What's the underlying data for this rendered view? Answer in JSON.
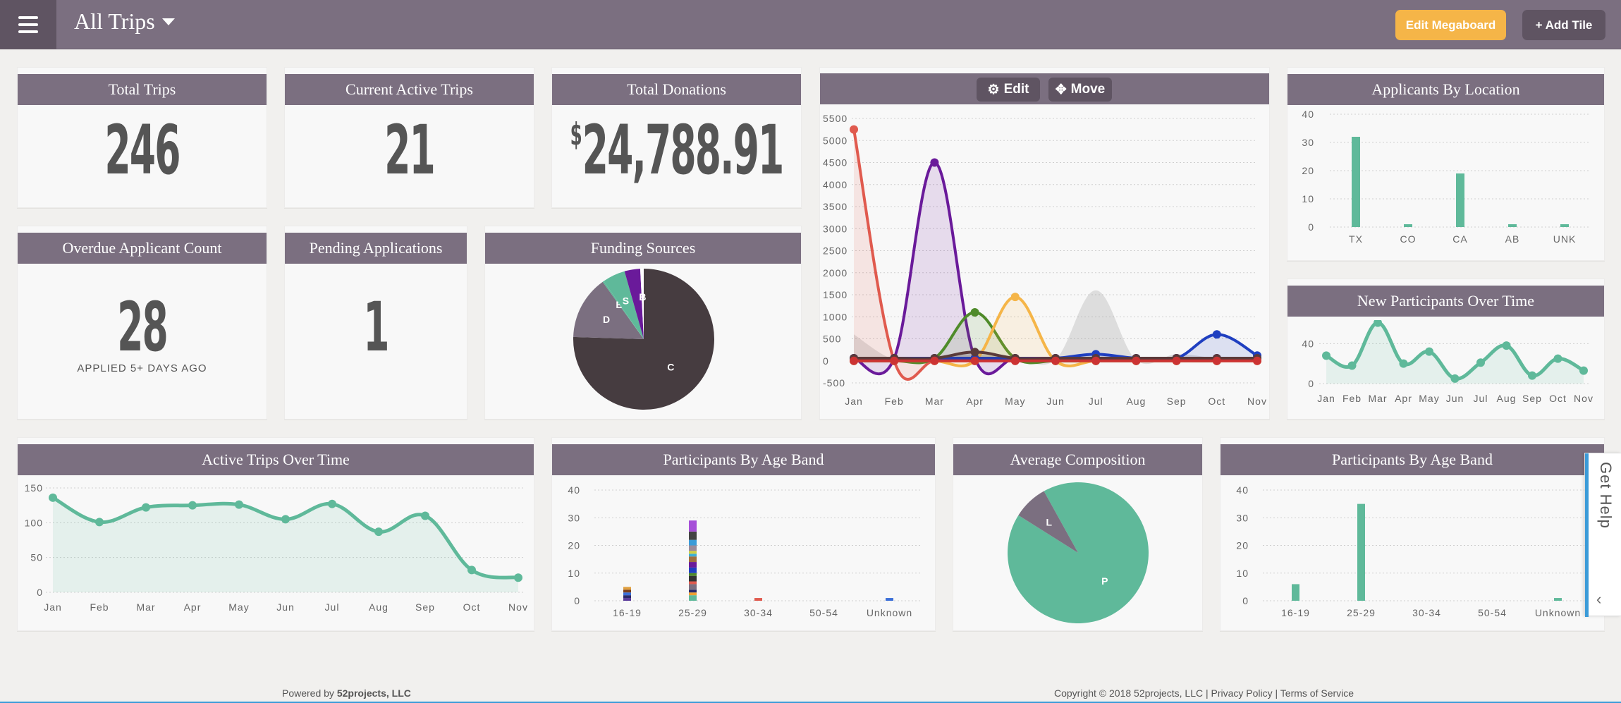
{
  "header": {
    "title": "All Trips",
    "edit_label": "Edit Megaboard",
    "add_label": "+ Add Tile"
  },
  "tiles": {
    "total_trips": {
      "title": "Total Trips",
      "value": "246"
    },
    "active_trips": {
      "title": "Current Active Trips",
      "value": "21"
    },
    "donations": {
      "title": "Total Donations",
      "currency": "$",
      "value": "24,788.91"
    },
    "overdue": {
      "title": "Overdue Applicant Count",
      "value": "28",
      "caption": "APPLIED 5+ DAYS AGO"
    },
    "pending": {
      "title": "Pending Applications",
      "value": "1"
    },
    "funding": {
      "title": "Funding Sources"
    },
    "applicants_location": {
      "title": "Applicants By Location"
    },
    "new_participants": {
      "title": "New Participants Over Time"
    },
    "active_over_time": {
      "title": "Active Trips Over Time"
    },
    "age_band_1": {
      "title": "Participants By Age Band"
    },
    "avg_comp": {
      "title": "Average Composition"
    },
    "age_band_2": {
      "title": "Participants By Age Band"
    }
  },
  "toolbar": {
    "edit_label": "Edit",
    "move_label": "Move"
  },
  "help": {
    "label": "Get Help"
  },
  "footer": {
    "powered": "Powered by ",
    "brand": "52projects, LLC",
    "copyright": "Copyright © 2018 52projects, LLC | Privacy Policy | Terms of Service"
  },
  "colors": {
    "header": "#7b6f80",
    "header_dark": "#5f5462",
    "accent_orange": "#f5b548",
    "teal": "#5fb99a",
    "help_blue": "#3b9bd8"
  },
  "icons": {
    "menu": "hamburger-icon",
    "edit": "gear-icon",
    "move": "move-arrows-icon",
    "caret": "caret-down-icon",
    "help_chevron": "chevron-left-icon"
  },
  "chart_data": [
    {
      "id": "funding",
      "type": "pie",
      "labels": [
        "C",
        "D",
        "B",
        "S",
        "",
        "B"
      ],
      "values": [
        75.5,
        14.6,
        0.3,
        5.2,
        3.6,
        0.8
      ],
      "colors": [
        "#463c40",
        "#7b6f80",
        "#5fb99a",
        "#5fb99a",
        "#6a1a9a",
        "#ffffff"
      ]
    },
    {
      "id": "multi_line",
      "type": "area",
      "categories": [
        "Jan",
        "Feb",
        "Mar",
        "Apr",
        "May",
        "Jun",
        "Jul",
        "Aug",
        "Sep",
        "Oct",
        "Nov"
      ],
      "ylim": [
        -500,
        5500
      ],
      "yticks": [
        -500,
        0,
        500,
        1000,
        1500,
        2000,
        2500,
        3000,
        3500,
        4000,
        4500,
        5000,
        5500
      ],
      "series": [
        {
          "color": "#9e9e9e",
          "values": [
            600,
            30,
            80,
            150,
            60,
            30,
            1600,
            20,
            150,
            60,
            20
          ]
        },
        {
          "color": "#e05a4e",
          "values": [
            5250,
            0,
            0,
            0,
            0,
            0,
            0,
            0,
            0,
            0,
            0
          ]
        },
        {
          "color": "#6a1a9a",
          "values": [
            60,
            60,
            4500,
            60,
            60,
            60,
            60,
            60,
            60,
            60,
            60
          ]
        },
        {
          "color": "#4f8b2a",
          "values": [
            0,
            0,
            60,
            1100,
            60,
            0,
            0,
            0,
            0,
            0,
            60
          ]
        },
        {
          "color": "#f5b548",
          "values": [
            0,
            0,
            0,
            0,
            1450,
            0,
            0,
            0,
            0,
            0,
            0
          ]
        },
        {
          "color": "#1f3fc0",
          "values": [
            60,
            60,
            60,
            60,
            60,
            60,
            150,
            60,
            60,
            600,
            120
          ]
        },
        {
          "color": "#5a3a3a",
          "values": [
            60,
            60,
            60,
            200,
            60,
            60,
            60,
            60,
            60,
            60,
            60
          ]
        },
        {
          "color": "#cc3333",
          "values": [
            0,
            0,
            0,
            0,
            0,
            0,
            0,
            0,
            0,
            0,
            0
          ]
        }
      ]
    },
    {
      "id": "applicants_location",
      "type": "bar",
      "categories": [
        "TX",
        "CO",
        "CA",
        "AB",
        "UNK"
      ],
      "values": [
        32,
        1,
        19,
        1,
        1
      ],
      "ylim": [
        0,
        40
      ],
      "yticks": [
        0,
        10,
        20,
        30,
        40
      ]
    },
    {
      "id": "new_participants",
      "type": "area",
      "categories": [
        "Jan",
        "Feb",
        "Mar",
        "Apr",
        "May",
        "Jun",
        "Jul",
        "Aug",
        "Sep",
        "Oct",
        "Nov"
      ],
      "values": [
        28,
        18,
        61,
        20,
        32,
        5,
        21,
        38,
        8,
        25,
        13
      ],
      "ylim": [
        0,
        60
      ],
      "yticks": [
        0,
        40
      ]
    },
    {
      "id": "active_over_time",
      "type": "area",
      "categories": [
        "Jan",
        "Feb",
        "Mar",
        "Apr",
        "May",
        "Jun",
        "Jul",
        "Aug",
        "Sep",
        "Oct",
        "Nov"
      ],
      "values": [
        136,
        101,
        122,
        125,
        126,
        105,
        127,
        87,
        110,
        32,
        21
      ],
      "ylim": [
        0,
        150
      ],
      "yticks": [
        0,
        50,
        100,
        150
      ]
    },
    {
      "id": "age_band_1",
      "type": "bar",
      "stacked": true,
      "categories": [
        "16-19",
        "25-29",
        "30-34",
        "50-54",
        "Unknown"
      ],
      "ylim": [
        0,
        40
      ],
      "yticks": [
        0,
        10,
        20,
        30,
        40
      ],
      "stacks": [
        [
          {
            "v": 1,
            "c": "#5a3a9a"
          },
          {
            "v": 1,
            "c": "#2a2a6a"
          },
          {
            "v": 1,
            "c": "#3b6fd8"
          },
          {
            "v": 1,
            "c": "#7b3f1a"
          },
          {
            "v": 1,
            "c": "#e0a040"
          }
        ],
        [
          {
            "v": 2,
            "c": "#5fb99a"
          },
          {
            "v": 1,
            "c": "#f0a030"
          },
          {
            "v": 1,
            "c": "#2a2a6a"
          },
          {
            "v": 2,
            "c": "#7b6f80"
          },
          {
            "v": 1,
            "c": "#e05a4e"
          },
          {
            "v": 2,
            "c": "#333333"
          },
          {
            "v": 1,
            "c": "#4f8b2a"
          },
          {
            "v": 2,
            "c": "#1f3fc0"
          },
          {
            "v": 2,
            "c": "#6a1a9a"
          },
          {
            "v": 2,
            "c": "#a07040"
          },
          {
            "v": 1,
            "c": "#3bb0d8"
          },
          {
            "v": 1,
            "c": "#d0d040"
          },
          {
            "v": 2,
            "c": "#9a8a9a"
          },
          {
            "v": 2,
            "c": "#3b9bd8"
          },
          {
            "v": 3,
            "c": "#444444"
          },
          {
            "v": 4,
            "c": "#a64fd8"
          }
        ],
        [
          {
            "v": 1,
            "c": "#e05a4e"
          }
        ],
        [],
        [
          {
            "v": 1,
            "c": "#3b6fd8"
          }
        ]
      ]
    },
    {
      "id": "avg_comp",
      "type": "pie",
      "labels": [
        "P",
        "L"
      ],
      "values": [
        92,
        8
      ],
      "colors": [
        "#5fb99a",
        "#7b6f80"
      ]
    },
    {
      "id": "age_band_2",
      "type": "bar",
      "categories": [
        "16-19",
        "25-29",
        "30-34",
        "50-54",
        "Unknown"
      ],
      "values": [
        6,
        35,
        0,
        0,
        1
      ],
      "ylim": [
        0,
        40
      ],
      "yticks": [
        0,
        10,
        20,
        30,
        40
      ]
    }
  ]
}
